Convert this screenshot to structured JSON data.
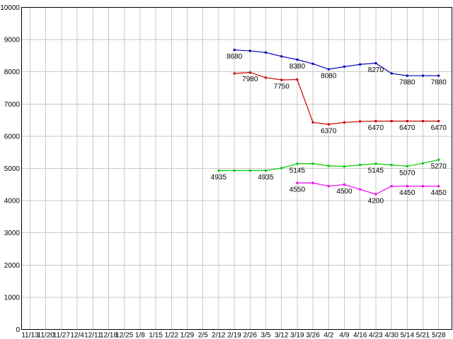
{
  "chart_data": {
    "type": "line",
    "title": "",
    "xlabel": "",
    "ylabel": "",
    "legend": "none",
    "grid": true,
    "background": "#ffffff",
    "grid_color": "#c8c8c8",
    "border_color": "#000000",
    "ylim": [
      0,
      10000
    ],
    "y_ticks": [
      0,
      1000,
      2000,
      3000,
      4000,
      5000,
      6000,
      7000,
      8000,
      9000,
      10000
    ],
    "y_tick_labels": [
      "0",
      "1000",
      "2000",
      "3000",
      "4000",
      "5000",
      "6000",
      "7000",
      "8000",
      "9000",
      "10000"
    ],
    "categories": [
      "11/13",
      "11/20",
      "11/27",
      "12/4",
      "12/11",
      "12/18",
      "12/25",
      "1/8",
      "1/15",
      "1/22",
      "1/29",
      "2/5",
      "2/12",
      "2/19",
      "2/26",
      "3/5",
      "3/12",
      "3/19",
      "3/26",
      "4/2",
      "4/9",
      "4/16",
      "4/23",
      "4/30",
      "5/14",
      "5/21",
      "5/28"
    ],
    "series": [
      {
        "name": "blue-series",
        "color": "#0000bb",
        "start_index": 13,
        "values": [
          8680,
          8650,
          8600,
          8480,
          8380,
          8250,
          8080,
          8160,
          8230,
          8270,
          7950,
          7880,
          7880,
          7880
        ]
      },
      {
        "name": "red-series",
        "color": "#cc0000",
        "start_index": 13,
        "values": [
          7950,
          7980,
          7820,
          7750,
          7760,
          6430,
          6370,
          6430,
          6460,
          6470,
          6470,
          6470,
          6470,
          6470
        ]
      },
      {
        "name": "green-series",
        "color": "#00cc00",
        "start_index": 12,
        "values": [
          4935,
          4935,
          4935,
          4935,
          5010,
          5145,
          5150,
          5080,
          5060,
          5110,
          5145,
          5110,
          5070,
          5160,
          5270
        ]
      },
      {
        "name": "magenta-series",
        "color": "#ee00ee",
        "start_index": 17,
        "values": [
          4550,
          4550,
          4450,
          4500,
          4350,
          4200,
          4450,
          4450,
          4450,
          4450
        ]
      }
    ],
    "point_labels": [
      {
        "series": 0,
        "index": 13,
        "text": "8680"
      },
      {
        "series": 0,
        "index": 17,
        "text": "8380"
      },
      {
        "series": 0,
        "index": 19,
        "text": "8080"
      },
      {
        "series": 0,
        "index": 22,
        "text": "8270"
      },
      {
        "series": 0,
        "index": 24,
        "text": "7880"
      },
      {
        "series": 0,
        "index": 26,
        "text": "7880"
      },
      {
        "series": 1,
        "index": 14,
        "text": "7980"
      },
      {
        "series": 1,
        "index": 16,
        "text": "7750"
      },
      {
        "series": 1,
        "index": 19,
        "text": "6370"
      },
      {
        "series": 1,
        "index": 22,
        "text": "6470"
      },
      {
        "series": 1,
        "index": 24,
        "text": "6470"
      },
      {
        "series": 1,
        "index": 26,
        "text": "6470"
      },
      {
        "series": 2,
        "index": 12,
        "text": "4935"
      },
      {
        "series": 2,
        "index": 15,
        "text": "4935"
      },
      {
        "series": 2,
        "index": 17,
        "text": "5145"
      },
      {
        "series": 2,
        "index": 22,
        "text": "5145"
      },
      {
        "series": 2,
        "index": 24,
        "text": "5070"
      },
      {
        "series": 2,
        "index": 26,
        "text": "5270"
      },
      {
        "series": 3,
        "index": 17,
        "text": "4550"
      },
      {
        "series": 3,
        "index": 20,
        "text": "4500"
      },
      {
        "series": 3,
        "index": 22,
        "text": "4200"
      },
      {
        "series": 3,
        "index": 24,
        "text": "4450"
      },
      {
        "series": 3,
        "index": 26,
        "text": "4450"
      }
    ]
  }
}
